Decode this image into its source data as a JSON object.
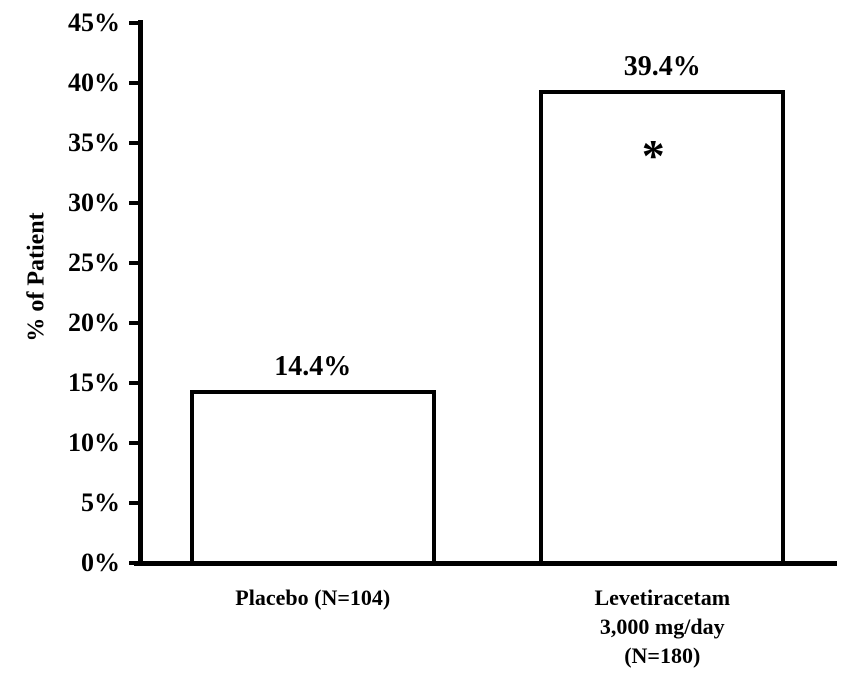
{
  "page": {
    "background": "#ffffff"
  },
  "chart_data": {
    "type": "bar",
    "title": "",
    "xlabel": "",
    "ylabel": "% of Patient",
    "ylim": [
      0,
      45
    ],
    "ytick_step": 5,
    "ytick_labels": [
      "0%",
      "5%",
      "10%",
      "15%",
      "20%",
      "25%",
      "30%",
      "35%",
      "40%",
      "45%"
    ],
    "categories": [
      {
        "label_lines": [
          "Placebo (N=104)"
        ]
      },
      {
        "label_lines": [
          "Levetiracetam",
          "3,000 mg/day",
          "(N=180)"
        ]
      }
    ],
    "values": [
      14.4,
      39.4
    ],
    "value_labels": [
      "14.4%",
      "39.4%"
    ],
    "annotations": [
      {
        "bar_index": 1,
        "symbol": "*"
      }
    ],
    "grid": false,
    "legend": false,
    "colors": {
      "bar_fill": "#ffffff",
      "bar_border": "#000000",
      "axis": "#000000",
      "text": "#000000"
    }
  }
}
